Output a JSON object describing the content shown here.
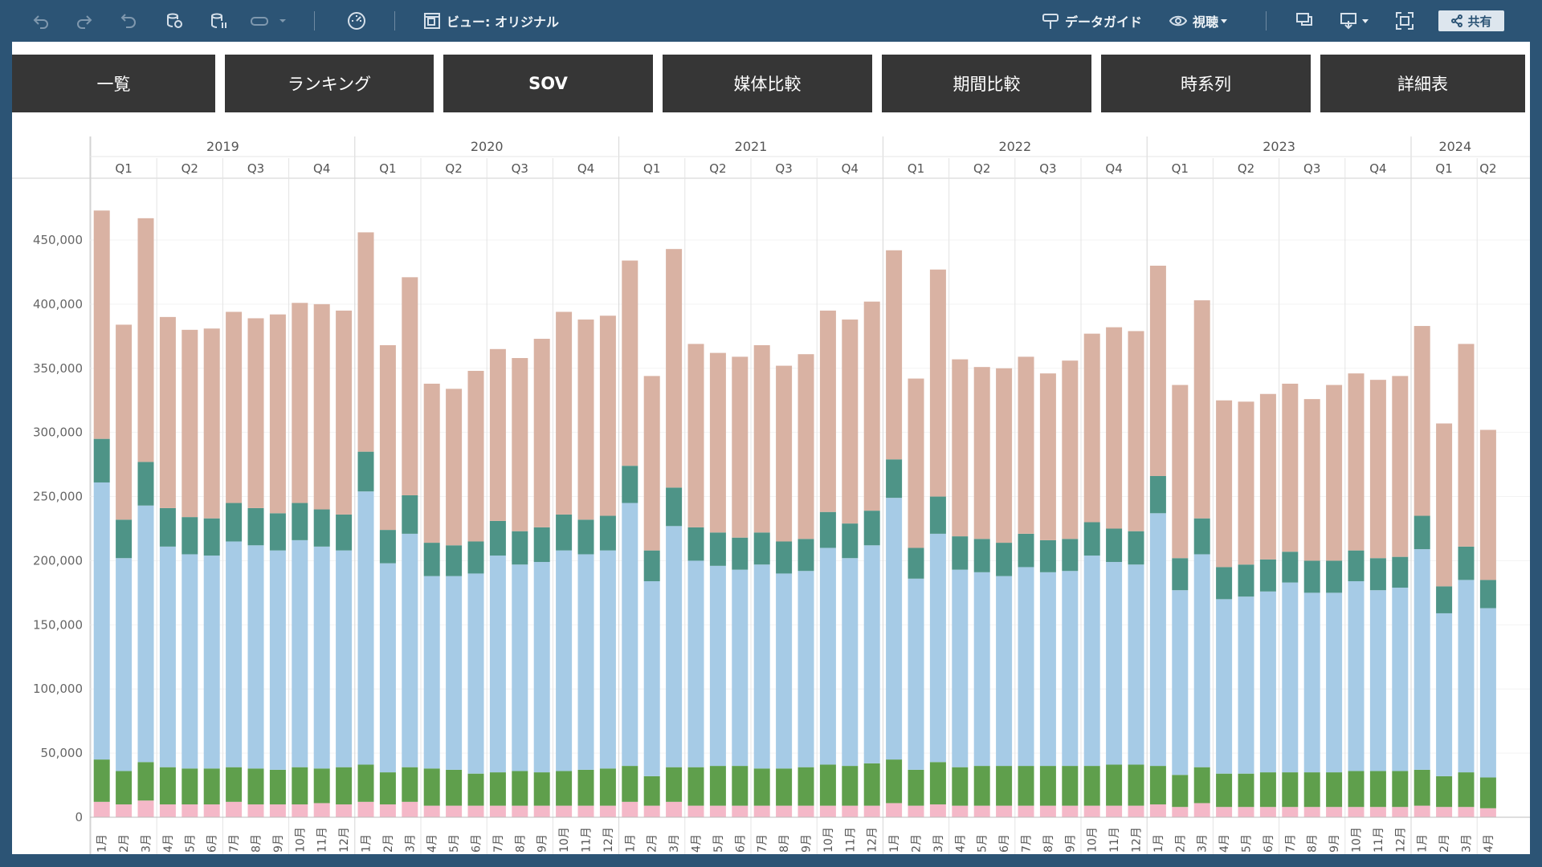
{
  "toolbar": {
    "undo_icon": "undo-icon",
    "redo_icon": "redo-icon",
    "revert_icon": "revert-icon",
    "view_label": "ビュー: オリジナル",
    "data_guide_label": "データガイド",
    "view_mode_label": "視聴",
    "share_label": "共有"
  },
  "tabs": [
    {
      "label": "一覧",
      "active": false
    },
    {
      "label": "ランキング",
      "active": false
    },
    {
      "label": "SOV",
      "active": true
    },
    {
      "label": "媒体比較",
      "active": false
    },
    {
      "label": "期間比較",
      "active": false
    },
    {
      "label": "時系列",
      "active": false
    },
    {
      "label": "詳細表",
      "active": false
    }
  ],
  "chart_data": {
    "type": "bar",
    "stacked": true,
    "ylim": [
      0,
      500000
    ],
    "yticks": [
      "0",
      "50,000",
      "100,000",
      "150,000",
      "200,000",
      "250,000",
      "300,000",
      "350,000",
      "400,000",
      "450,000"
    ],
    "ytick_values": [
      0,
      50000,
      100000,
      150000,
      200000,
      250000,
      300000,
      350000,
      400000,
      450000
    ],
    "years": [
      {
        "label": "2019",
        "quarters": [
          "Q1",
          "Q2",
          "Q3",
          "Q4"
        ]
      },
      {
        "label": "2020",
        "quarters": [
          "Q1",
          "Q2",
          "Q3",
          "Q4"
        ]
      },
      {
        "label": "2021",
        "quarters": [
          "Q1",
          "Q2",
          "Q3",
          "Q4"
        ]
      },
      {
        "label": "2022",
        "quarters": [
          "Q1",
          "Q2",
          "Q3",
          "Q4"
        ]
      },
      {
        "label": "2023",
        "quarters": [
          "Q1",
          "Q2",
          "Q3",
          "Q4"
        ]
      },
      {
        "label": "2024",
        "quarters": [
          "Q1",
          "Q2"
        ]
      }
    ],
    "categories": [
      "1月",
      "2月",
      "3月",
      "4月",
      "5月",
      "6月",
      "7月",
      "8月",
      "9月",
      "10月",
      "11月",
      "12月",
      "1月",
      "2月",
      "3月",
      "4月",
      "5月",
      "6月",
      "7月",
      "8月",
      "9月",
      "10月",
      "11月",
      "12月",
      "1月",
      "2月",
      "3月",
      "4月",
      "5月",
      "6月",
      "7月",
      "8月",
      "9月",
      "10月",
      "11月",
      "12月",
      "1月",
      "2月",
      "3月",
      "4月",
      "5月",
      "6月",
      "7月",
      "8月",
      "9月",
      "10月",
      "11月",
      "12月",
      "1月",
      "2月",
      "3月",
      "4月",
      "5月",
      "6月",
      "7月",
      "8月",
      "9月",
      "10月",
      "11月",
      "12月",
      "1月",
      "2月",
      "3月",
      "4月"
    ],
    "colors": [
      "#f4b8c8",
      "#5f9f4c",
      "#a6cbe6",
      "#4e9487",
      "#d9b2a3"
    ],
    "series": [
      {
        "values": [
          12000,
          10000,
          13000,
          10000,
          10000,
          10000,
          12000,
          10000,
          10000,
          10000,
          11000,
          10000,
          12000,
          10000,
          12000,
          9000,
          9000,
          9000,
          9000,
          9000,
          9000,
          9000,
          9000,
          9000,
          12000,
          9000,
          12000,
          9000,
          9000,
          9000,
          9000,
          9000,
          9000,
          9000,
          9000,
          9000,
          11000,
          9000,
          10000,
          9000,
          9000,
          9000,
          9000,
          9000,
          9000,
          9000,
          9000,
          9000,
          10000,
          8000,
          11000,
          8000,
          8000,
          8000,
          8000,
          8000,
          8000,
          8000,
          8000,
          8000,
          9000,
          8000,
          8000,
          7000
        ]
      },
      {
        "values": [
          33000,
          26000,
          30000,
          29000,
          28000,
          28000,
          27000,
          28000,
          27000,
          29000,
          27000,
          29000,
          29000,
          25000,
          27000,
          29000,
          28000,
          25000,
          26000,
          27000,
          26000,
          27000,
          28000,
          29000,
          28000,
          23000,
          27000,
          30000,
          31000,
          31000,
          29000,
          29000,
          30000,
          32000,
          31000,
          33000,
          34000,
          28000,
          33000,
          30000,
          31000,
          31000,
          31000,
          31000,
          31000,
          31000,
          32000,
          32000,
          30000,
          25000,
          28000,
          26000,
          26000,
          27000,
          27000,
          27000,
          27000,
          28000,
          28000,
          28000,
          28000,
          24000,
          27000,
          24000
        ]
      },
      {
        "values": [
          216000,
          166000,
          200000,
          172000,
          167000,
          166000,
          176000,
          174000,
          171000,
          177000,
          173000,
          169000,
          213000,
          163000,
          182000,
          150000,
          151000,
          156000,
          169000,
          161000,
          164000,
          172000,
          168000,
          170000,
          205000,
          152000,
          188000,
          161000,
          156000,
          153000,
          159000,
          152000,
          153000,
          169000,
          162000,
          170000,
          204000,
          149000,
          178000,
          154000,
          151000,
          148000,
          155000,
          151000,
          152000,
          164000,
          158000,
          156000,
          197000,
          144000,
          166000,
          136000,
          138000,
          141000,
          148000,
          140000,
          140000,
          148000,
          141000,
          143000,
          172000,
          127000,
          150000,
          132000
        ]
      },
      {
        "values": [
          34000,
          30000,
          34000,
          30000,
          29000,
          29000,
          30000,
          29000,
          29000,
          29000,
          29000,
          28000,
          31000,
          26000,
          30000,
          26000,
          24000,
          25000,
          27000,
          26000,
          27000,
          28000,
          27000,
          27000,
          29000,
          24000,
          30000,
          26000,
          26000,
          25000,
          25000,
          25000,
          25000,
          28000,
          27000,
          27000,
          30000,
          24000,
          29000,
          26000,
          26000,
          26000,
          26000,
          25000,
          25000,
          26000,
          26000,
          26000,
          29000,
          25000,
          28000,
          25000,
          25000,
          25000,
          24000,
          25000,
          25000,
          24000,
          25000,
          24000,
          26000,
          21000,
          26000,
          22000
        ]
      },
      {
        "values": [
          178000,
          152000,
          190000,
          149000,
          146000,
          148000,
          149000,
          148000,
          155000,
          156000,
          160000,
          159000,
          171000,
          144000,
          170000,
          124000,
          122000,
          133000,
          134000,
          135000,
          147000,
          158000,
          156000,
          156000,
          160000,
          136000,
          186000,
          143000,
          140000,
          141000,
          146000,
          137000,
          144000,
          157000,
          159000,
          163000,
          163000,
          132000,
          177000,
          138000,
          134000,
          136000,
          138000,
          130000,
          139000,
          147000,
          157000,
          156000,
          164000,
          135000,
          170000,
          130000,
          127000,
          129000,
          131000,
          126000,
          137000,
          138000,
          139000,
          141000,
          148000,
          127000,
          158000,
          117000
        ]
      }
    ]
  }
}
